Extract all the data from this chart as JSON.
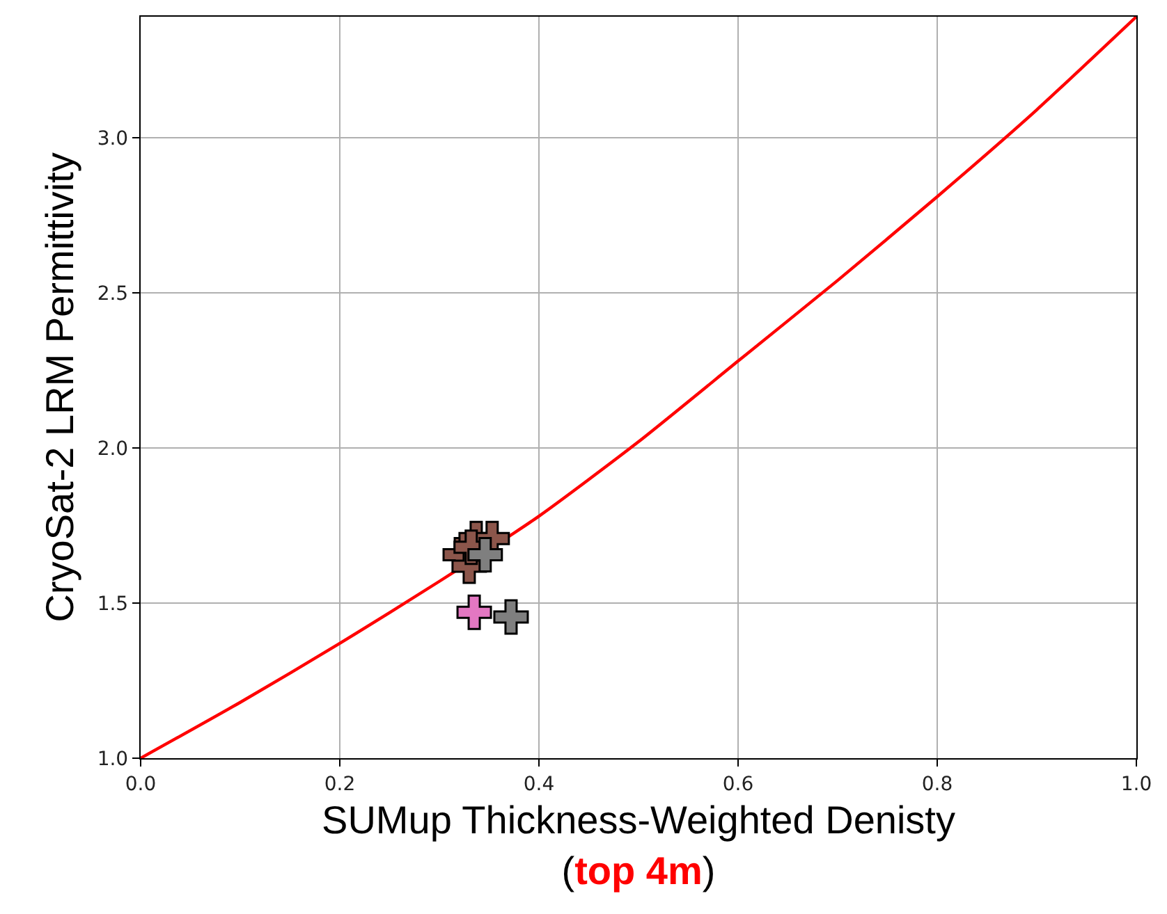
{
  "chart_data": {
    "type": "scatter",
    "xlabel": "SUMup Thickness-Weighted Denisty\n(top 4m)",
    "ylabel": "CryoSat-2 LRM Permittivity",
    "xlim": [
      0,
      1
    ],
    "ylim": [
      1,
      3.39
    ],
    "xticks": [
      {
        "value": 0,
        "label": "0.0"
      },
      0.2,
      0.4,
      0.6,
      0.8,
      {
        "value": 1,
        "label": "1.0"
      }
    ],
    "yticks": [
      {
        "value": 1,
        "label": "1.0"
      },
      1.5,
      {
        "value": 2,
        "label": "2.0"
      },
      2.5,
      {
        "value": 3,
        "label": "3.0"
      }
    ],
    "grid": true,
    "marker": "cross",
    "series": [
      {
        "type": "line",
        "color": "#ff0000",
        "marker": "none",
        "x": [
          0,
          0.1,
          0.2,
          0.3,
          0.4,
          0.5,
          0.6,
          0.7,
          0.8,
          0.9,
          1.0
        ],
        "values": [
          1.0,
          1.18,
          1.37,
          1.57,
          1.78,
          2.02,
          2.28,
          2.54,
          2.81,
          3.09,
          3.39
        ]
      },
      {
        "color": "#8c564b",
        "x": [
          0.321,
          0.337,
          0.353,
          0.33,
          0.332
        ],
        "values": [
          1.656,
          1.708,
          1.708,
          1.619,
          1.68
        ]
      },
      {
        "color": "#7f7f7f",
        "x": [
          0.346,
          0.372
        ],
        "values": [
          1.656,
          1.455
        ]
      },
      {
        "color": "#e377c2",
        "x": [
          0.335
        ],
        "values": [
          1.47
        ]
      }
    ]
  }
}
